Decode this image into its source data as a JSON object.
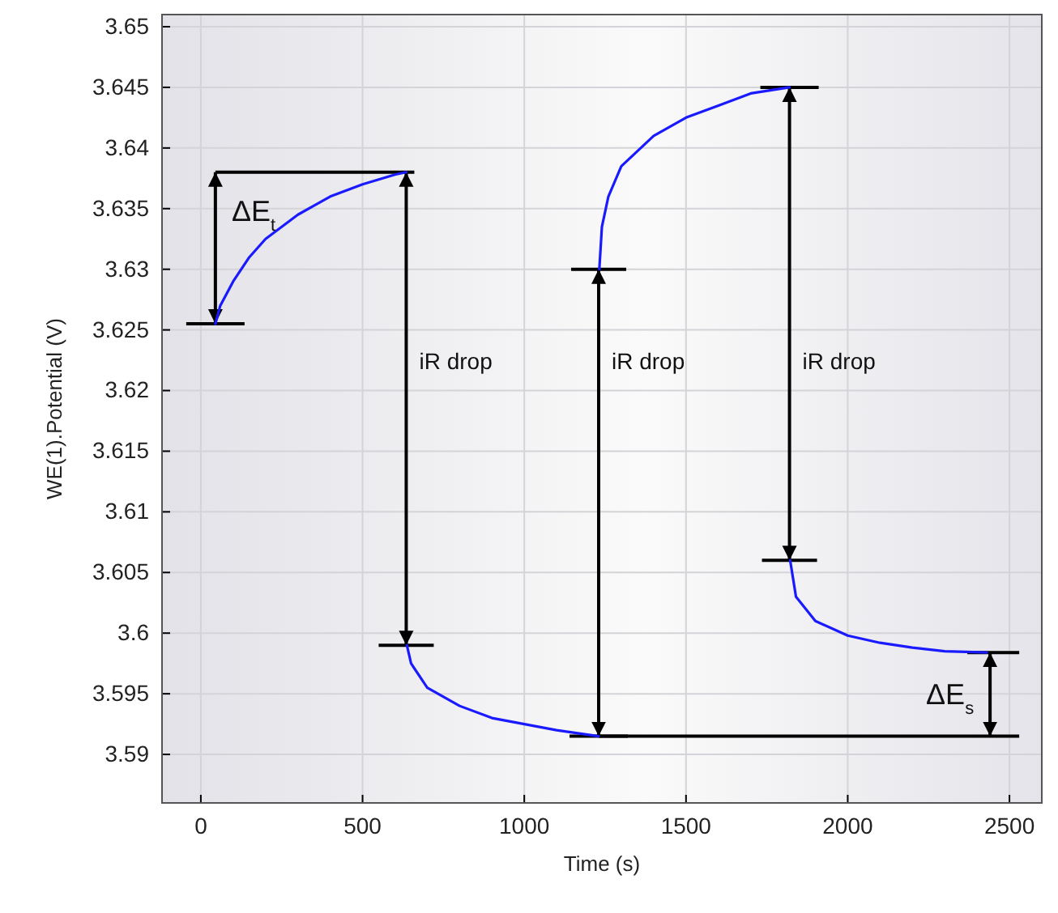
{
  "chart_data": {
    "type": "line",
    "xlabel": "Time (s)",
    "ylabel": "WE(1).Potential (V)",
    "xlim": [
      -120,
      2600
    ],
    "ylim": [
      3.586,
      3.651
    ],
    "xticks": [
      0,
      500,
      1000,
      1500,
      2000,
      2500
    ],
    "yticks": [
      {
        "value": 3.59,
        "label": "3.59"
      },
      {
        "value": 3.595,
        "label": "3.595"
      },
      {
        "value": 3.6,
        "label": "3.6"
      },
      {
        "value": 3.605,
        "label": "3.605"
      },
      {
        "value": 3.61,
        "label": "3.61"
      },
      {
        "value": 3.615,
        "label": "3.615"
      },
      {
        "value": 3.62,
        "label": "3.62"
      },
      {
        "value": 3.625,
        "label": "3.625"
      },
      {
        "value": 3.63,
        "label": "3.63"
      },
      {
        "value": 3.635,
        "label": "3.635"
      },
      {
        "value": 3.64,
        "label": "3.64"
      },
      {
        "value": 3.645,
        "label": "3.645"
      },
      {
        "value": 3.65,
        "label": "3.65"
      }
    ],
    "grid": true,
    "marker": "none",
    "line_style": "solid",
    "series": [
      {
        "color": "#1a1aff",
        "x": [
          45,
          60,
          100,
          150,
          200,
          300,
          400,
          500,
          600,
          635,
          636,
          637,
          650,
          700,
          800,
          900,
          1000,
          1100,
          1230,
          1231,
          1232,
          1240,
          1260,
          1300,
          1400,
          1500,
          1600,
          1700,
          1820,
          1821,
          1822,
          1840,
          1900,
          2000,
          2100,
          2200,
          2300,
          2430
        ],
        "values": [
          3.6255,
          3.627,
          3.629,
          3.631,
          3.6325,
          3.6345,
          3.636,
          3.637,
          3.6378,
          3.638,
          null,
          3.599,
          3.5975,
          3.5955,
          3.594,
          3.593,
          3.5925,
          3.592,
          3.5915,
          null,
          3.63,
          3.6335,
          3.636,
          3.6385,
          3.641,
          3.6425,
          3.6435,
          3.6445,
          3.645,
          null,
          3.606,
          3.603,
          3.601,
          3.5998,
          3.5992,
          3.5988,
          3.5985,
          3.5984
        ]
      }
    ],
    "ref_lines": [
      {
        "axis": "y",
        "value": 3.5915,
        "color": "#000000"
      }
    ],
    "annotations": [
      "ΔE$_{t}$",
      "iR drop",
      "iR drop",
      "iR drop",
      "ΔE$_{s}$"
    ]
  }
}
